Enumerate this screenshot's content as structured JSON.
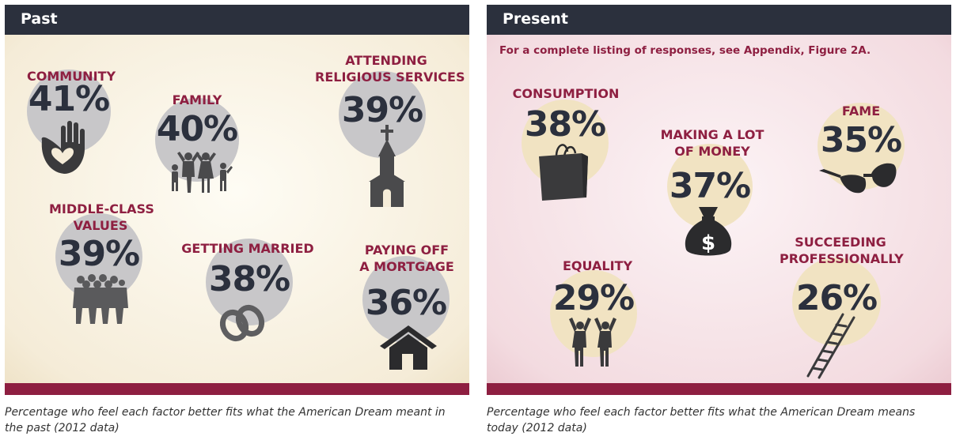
{
  "chart_data": [
    {
      "type": "bar",
      "title": "Past",
      "caption": "Percentage who feel each factor better fits what the American Dream meant in the past (2012 data)",
      "unit": "%",
      "categories": [
        "COMMUNITY",
        "FAMILY",
        "ATTENDING RELIGIOUS SERVICES",
        "MIDDLE-CLASS VALUES",
        "GETTING MARRIED",
        "PAYING OFF A MORTGAGE"
      ],
      "values": [
        41,
        40,
        39,
        39,
        38,
        36
      ],
      "labels": [
        "41%",
        "40%",
        "39%",
        "39%",
        "38%",
        "36%"
      ],
      "icons": [
        "hands-heart-icon",
        "family-icon",
        "church-icon",
        "crowd-icon",
        "wedding-rings-icon",
        "house-icon"
      ]
    },
    {
      "type": "bar",
      "title": "Present",
      "note": "For a complete listing of responses, see Appendix, Figure 2A.",
      "caption": "Percentage who feel each factor better fits what the American Dream means today (2012 data)",
      "unit": "%",
      "categories": [
        "CONSUMPTION",
        "MAKING A LOT OF MONEY",
        "FAME",
        "EQUALITY",
        "SUCCEEDING PROFESSIONALLY"
      ],
      "values": [
        38,
        37,
        35,
        29,
        26
      ],
      "labels": [
        "38%",
        "37%",
        "35%",
        "29%",
        "26%"
      ],
      "icons": [
        "shopping-bag-icon",
        "money-bag-icon",
        "sunglasses-icon",
        "cheering-people-icon",
        "ladder-icon"
      ]
    }
  ],
  "colors": {
    "header": "#2b303d",
    "accent": "#8e1f41",
    "past_circle": "#c8c7c9",
    "present_circle": "#f1e3c2",
    "value_text": "#2b303d"
  },
  "past": {
    "label_lines": [
      [
        "COMMUNITY"
      ],
      [
        "FAMILY"
      ],
      [
        "ATTENDING",
        "RELIGIOUS SERVICES"
      ],
      [
        "MIDDLE-CLASS",
        "VALUES"
      ],
      [
        "GETTING MARRIED"
      ],
      [
        "PAYING OFF",
        "A MORTGAGE"
      ]
    ]
  },
  "present": {
    "label_lines": [
      [
        "CONSUMPTION"
      ],
      [
        "MAKING A LOT",
        "OF MONEY"
      ],
      [
        "FAME"
      ],
      [
        "EQUALITY"
      ],
      [
        "SUCCEEDING",
        "PROFESSIONALLY"
      ]
    ]
  }
}
